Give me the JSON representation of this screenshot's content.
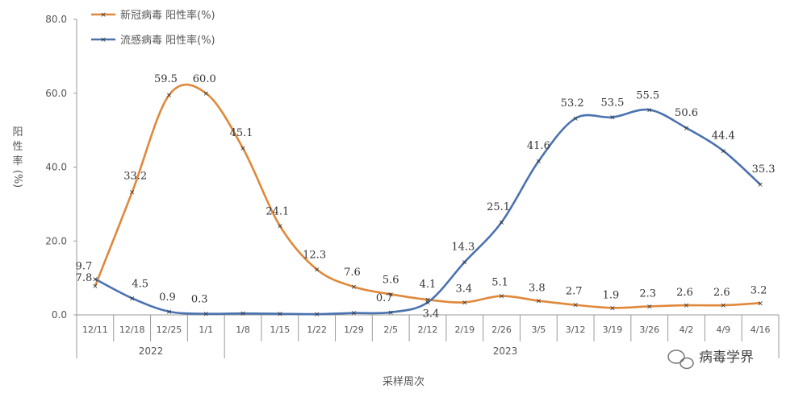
{
  "chart_data": {
    "type": "line",
    "categories": [
      "12/11",
      "12/18",
      "12/25",
      "1/1",
      "1/8",
      "1/15",
      "1/22",
      "1/29",
      "2/5",
      "2/12",
      "2/19",
      "2/26",
      "3/5",
      "3/12",
      "3/19",
      "3/26",
      "4/2",
      "4/9",
      "4/16"
    ],
    "years": [
      {
        "label": "2022",
        "from": 0,
        "to": 3
      },
      {
        "label": "2023",
        "from": 4,
        "to": 18
      }
    ],
    "series": [
      {
        "name": "新冠病毒 阳性率(%)",
        "color": "#e0883a",
        "values": [
          7.8,
          33.2,
          59.5,
          60.0,
          45.1,
          24.1,
          12.3,
          7.6,
          5.6,
          4.1,
          3.4,
          5.1,
          3.8,
          2.7,
          1.9,
          2.3,
          2.6,
          2.6,
          3.2
        ],
        "labels": [
          "7.8",
          "33.2",
          "59.5",
          "60.0",
          "45.1",
          "24.1",
          "12.3",
          "7.6",
          "5.6",
          "4.1",
          "3.4",
          "5.1",
          "3.8",
          "2.7",
          "1.9",
          "2.3",
          "2.6",
          "2.6",
          "3.2"
        ]
      },
      {
        "name": "流感病毒 阳性率(%)",
        "color": "#4a72b0",
        "values": [
          9.7,
          4.5,
          0.9,
          0.3,
          0.4,
          0.3,
          0.2,
          0.5,
          0.7,
          3.4,
          14.3,
          25.1,
          41.6,
          53.2,
          53.5,
          55.5,
          50.6,
          44.4,
          35.3
        ],
        "labels": [
          "9.7",
          "4.5",
          "0.9",
          "0.3",
          "",
          "",
          "",
          "",
          "0.7",
          "3.4",
          "14.3",
          "25.1",
          "41.6",
          "53.2",
          "53.5",
          "55.5",
          "50.6",
          "44.4",
          "35.3"
        ]
      }
    ],
    "yticks": [
      "0.0",
      "20.0",
      "40.0",
      "60.0",
      "80.0"
    ],
    "ylim": [
      0,
      80
    ],
    "ylabel_chars": [
      "阳",
      "性",
      "率"
    ],
    "ylabel_unit": "(%)",
    "xlabel": "采样周次",
    "grid": false,
    "legend": "top-left"
  },
  "watermark": "病毒学界"
}
